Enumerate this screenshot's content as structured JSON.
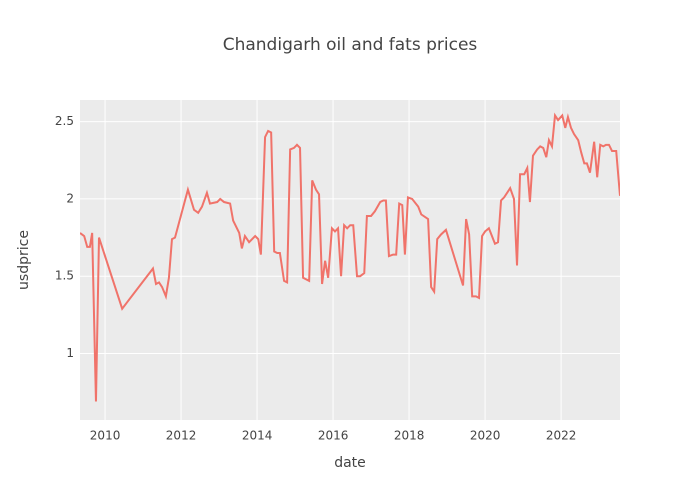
{
  "chart_data": {
    "type": "line",
    "title": "Chandigarh oil and fats prices",
    "x_label": "date",
    "y_label": "usdprice",
    "x": [
      2009.34,
      2009.45,
      2009.53,
      2009.6,
      2009.66,
      2009.76,
      2009.84,
      2010.45,
      2011.26,
      2011.34,
      2011.42,
      2011.5,
      2011.6,
      2011.68,
      2011.76,
      2011.84,
      2012.18,
      2012.34,
      2012.45,
      2012.55,
      2012.68,
      2012.76,
      2012.95,
      2013.03,
      2013.13,
      2013.29,
      2013.37,
      2013.53,
      2013.6,
      2013.68,
      2013.79,
      2013.95,
      2014.03,
      2014.1,
      2014.21,
      2014.29,
      2014.37,
      2014.45,
      2014.53,
      2014.6,
      2014.71,
      2014.79,
      2014.87,
      2014.97,
      2015.05,
      2015.13,
      2015.21,
      2015.37,
      2015.45,
      2015.55,
      2015.63,
      2015.71,
      2015.79,
      2015.87,
      2015.97,
      2016.05,
      2016.13,
      2016.21,
      2016.29,
      2016.37,
      2016.45,
      2016.53,
      2016.63,
      2016.71,
      2016.82,
      2016.89,
      2017.0,
      2017.1,
      2017.24,
      2017.32,
      2017.39,
      2017.47,
      2017.58,
      2017.66,
      2017.74,
      2017.82,
      2017.89,
      2017.97,
      2018.08,
      2018.24,
      2018.32,
      2018.5,
      2018.58,
      2018.66,
      2018.74,
      2018.84,
      2018.97,
      2019.42,
      2019.5,
      2019.58,
      2019.66,
      2019.76,
      2019.84,
      2019.92,
      2020.0,
      2020.1,
      2020.18,
      2020.26,
      2020.34,
      2020.42,
      2020.5,
      2020.66,
      2020.76,
      2020.84,
      2020.92,
      2021.03,
      2021.11,
      2021.18,
      2021.26,
      2021.37,
      2021.45,
      2021.53,
      2021.61,
      2021.68,
      2021.76,
      2021.84,
      2021.92,
      2022.03,
      2022.11,
      2022.18,
      2022.26,
      2022.34,
      2022.45,
      2022.53,
      2022.61,
      2022.68,
      2022.76,
      2022.87,
      2022.95,
      2023.03,
      2023.11,
      2023.18,
      2023.26,
      2023.34,
      2023.45,
      2023.55
    ],
    "series": [
      {
        "color": "#f0736a",
        "values": [
          1.78,
          1.76,
          1.69,
          1.69,
          1.78,
          0.69,
          1.75,
          1.29,
          1.55,
          1.45,
          1.46,
          1.43,
          1.37,
          1.49,
          1.74,
          1.75,
          2.06,
          1.93,
          1.91,
          1.95,
          2.04,
          1.97,
          1.98,
          2.0,
          1.98,
          1.97,
          1.86,
          1.78,
          1.68,
          1.76,
          1.72,
          1.76,
          1.74,
          1.64,
          2.4,
          2.44,
          2.43,
          1.66,
          1.65,
          1.65,
          1.47,
          1.46,
          2.32,
          2.33,
          2.35,
          2.33,
          1.49,
          1.47,
          2.12,
          2.06,
          2.03,
          1.45,
          1.6,
          1.49,
          1.81,
          1.79,
          1.81,
          1.5,
          1.83,
          1.81,
          1.83,
          1.83,
          1.5,
          1.5,
          1.52,
          1.89,
          1.89,
          1.92,
          1.98,
          1.99,
          1.99,
          1.63,
          1.64,
          1.64,
          1.97,
          1.96,
          1.64,
          2.01,
          2.0,
          1.95,
          1.9,
          1.87,
          1.43,
          1.4,
          1.74,
          1.77,
          1.8,
          1.44,
          1.87,
          1.77,
          1.37,
          1.37,
          1.36,
          1.76,
          1.79,
          1.81,
          1.76,
          1.71,
          1.72,
          1.99,
          2.01,
          2.07,
          2.0,
          1.57,
          2.16,
          2.16,
          2.2,
          1.98,
          2.28,
          2.32,
          2.34,
          2.33,
          2.27,
          2.38,
          2.34,
          2.54,
          2.51,
          2.54,
          2.46,
          2.53,
          2.46,
          2.42,
          2.38,
          2.3,
          2.23,
          2.23,
          2.17,
          2.37,
          2.14,
          2.35,
          2.34,
          2.35,
          2.35,
          2.31,
          2.31,
          2.02
        ]
      }
    ],
    "xlim": [
      2009.34,
      2023.55
    ],
    "xticks": [
      2010,
      2012,
      2014,
      2016,
      2018,
      2020,
      2022
    ],
    "ylim": [
      0.57,
      2.64
    ],
    "yticks": [
      1,
      1.5,
      2,
      2.5
    ],
    "grid": true
  }
}
